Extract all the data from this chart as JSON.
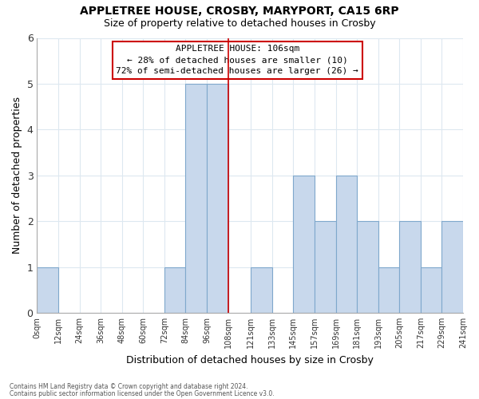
{
  "title1": "APPLETREE HOUSE, CROSBY, MARYPORT, CA15 6RP",
  "title2": "Size of property relative to detached houses in Crosby",
  "xlabel": "Distribution of detached houses by size in Crosby",
  "ylabel": "Number of detached properties",
  "bar_color": "#c8d8ec",
  "bar_edge_color": "#7fa8cc",
  "plot_bg_color": "#ffffff",
  "fig_bg_color": "#ffffff",
  "vline_color": "#cc0000",
  "vline_x": 108,
  "bin_edges": [
    0,
    12,
    24,
    36,
    48,
    60,
    72,
    84,
    96,
    108,
    121,
    133,
    145,
    157,
    169,
    181,
    193,
    205,
    217,
    229,
    241
  ],
  "bar_heights": [
    1,
    0,
    0,
    0,
    0,
    0,
    1,
    5,
    5,
    0,
    1,
    0,
    3,
    2,
    3,
    2,
    1,
    2,
    1,
    2
  ],
  "tick_labels": [
    "0sqm",
    "12sqm",
    "24sqm",
    "36sqm",
    "48sqm",
    "60sqm",
    "72sqm",
    "84sqm",
    "96sqm",
    "108sqm",
    "121sqm",
    "133sqm",
    "145sqm",
    "157sqm",
    "169sqm",
    "181sqm",
    "193sqm",
    "205sqm",
    "217sqm",
    "229sqm",
    "241sqm"
  ],
  "ylim": [
    0,
    6
  ],
  "yticks": [
    0,
    1,
    2,
    3,
    4,
    5,
    6
  ],
  "annotation_title": "APPLETREE HOUSE: 106sqm",
  "annotation_line1": "← 28% of detached houses are smaller (10)",
  "annotation_line2": "72% of semi-detached houses are larger (26) →",
  "footer1": "Contains HM Land Registry data © Crown copyright and database right 2024.",
  "footer2": "Contains public sector information licensed under the Open Government Licence v3.0.",
  "grid_color": "#dde8f0"
}
